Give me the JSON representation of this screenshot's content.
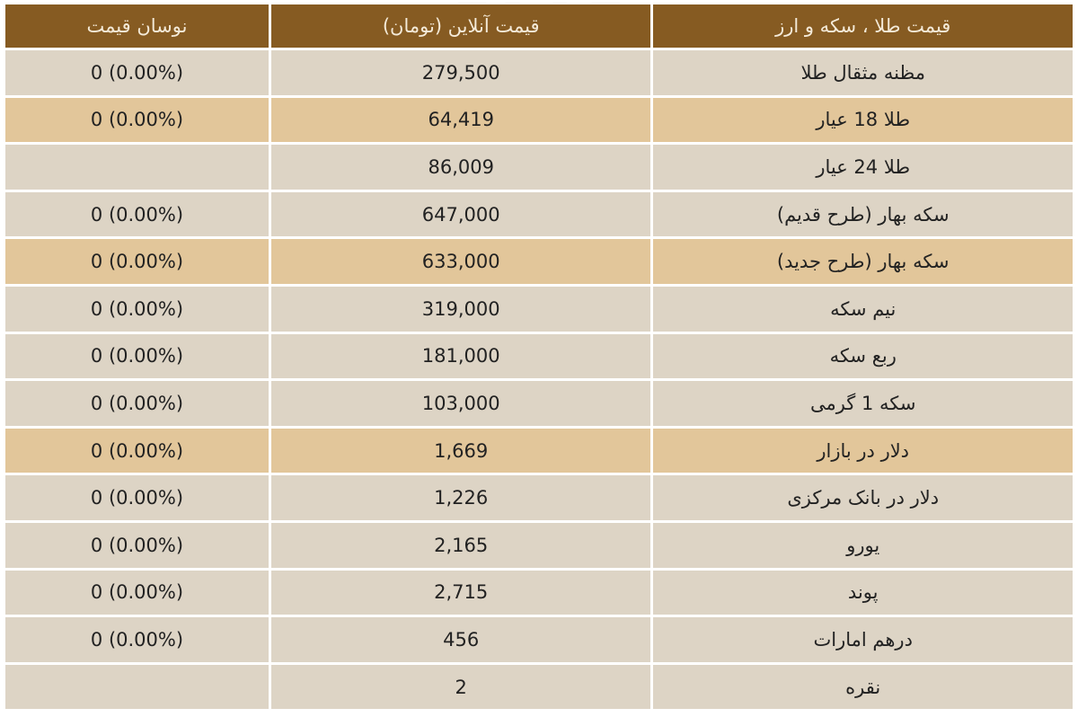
{
  "table": {
    "headers": {
      "name": "قیمت طلا ، سکه و ارز",
      "price": "قیمت آنلاین (تومان)",
      "change": "نوسان قیمت"
    },
    "colors": {
      "header_bg": "#865b22",
      "row_bg": "#ddd4c5",
      "highlight_bg": "#e2c69a"
    },
    "rows": [
      {
        "name": "مظنه مثقال طلا",
        "price": "279,500",
        "change": "0 (0.00%)",
        "highlight": false
      },
      {
        "name": "طلا 18 عیار",
        "price": "64,419",
        "change": "0 (0.00%)",
        "highlight": true
      },
      {
        "name": "طلا 24 عیار",
        "price": "86,009",
        "change": "",
        "highlight": false
      },
      {
        "name": "سکه بهار (طرح قدیم)",
        "price": "647,000",
        "change": "0 (0.00%)",
        "highlight": false
      },
      {
        "name": "سکه بهار (طرح جدید)",
        "price": "633,000",
        "change": "0 (0.00%)",
        "highlight": true
      },
      {
        "name": "نیم سکه",
        "price": "319,000",
        "change": "0 (0.00%)",
        "highlight": false
      },
      {
        "name": "ربع سکه",
        "price": "181,000",
        "change": "0 (0.00%)",
        "highlight": false
      },
      {
        "name": "سکه 1 گرمی",
        "price": "103,000",
        "change": "0 (0.00%)",
        "highlight": false
      },
      {
        "name": "دلار در بازار",
        "price": "1,669",
        "change": "0 (0.00%)",
        "highlight": true
      },
      {
        "name": "دلار در بانک مرکزی",
        "price": "1,226",
        "change": "0 (0.00%)",
        "highlight": false
      },
      {
        "name": "یورو",
        "price": "2,165",
        "change": "0 (0.00%)",
        "highlight": false
      },
      {
        "name": "پوند",
        "price": "2,715",
        "change": "0 (0.00%)",
        "highlight": false
      },
      {
        "name": "درهم امارات",
        "price": "456",
        "change": "0 (0.00%)",
        "highlight": false
      },
      {
        "name": "نقره",
        "price": "2",
        "change": "",
        "highlight": false
      }
    ]
  }
}
